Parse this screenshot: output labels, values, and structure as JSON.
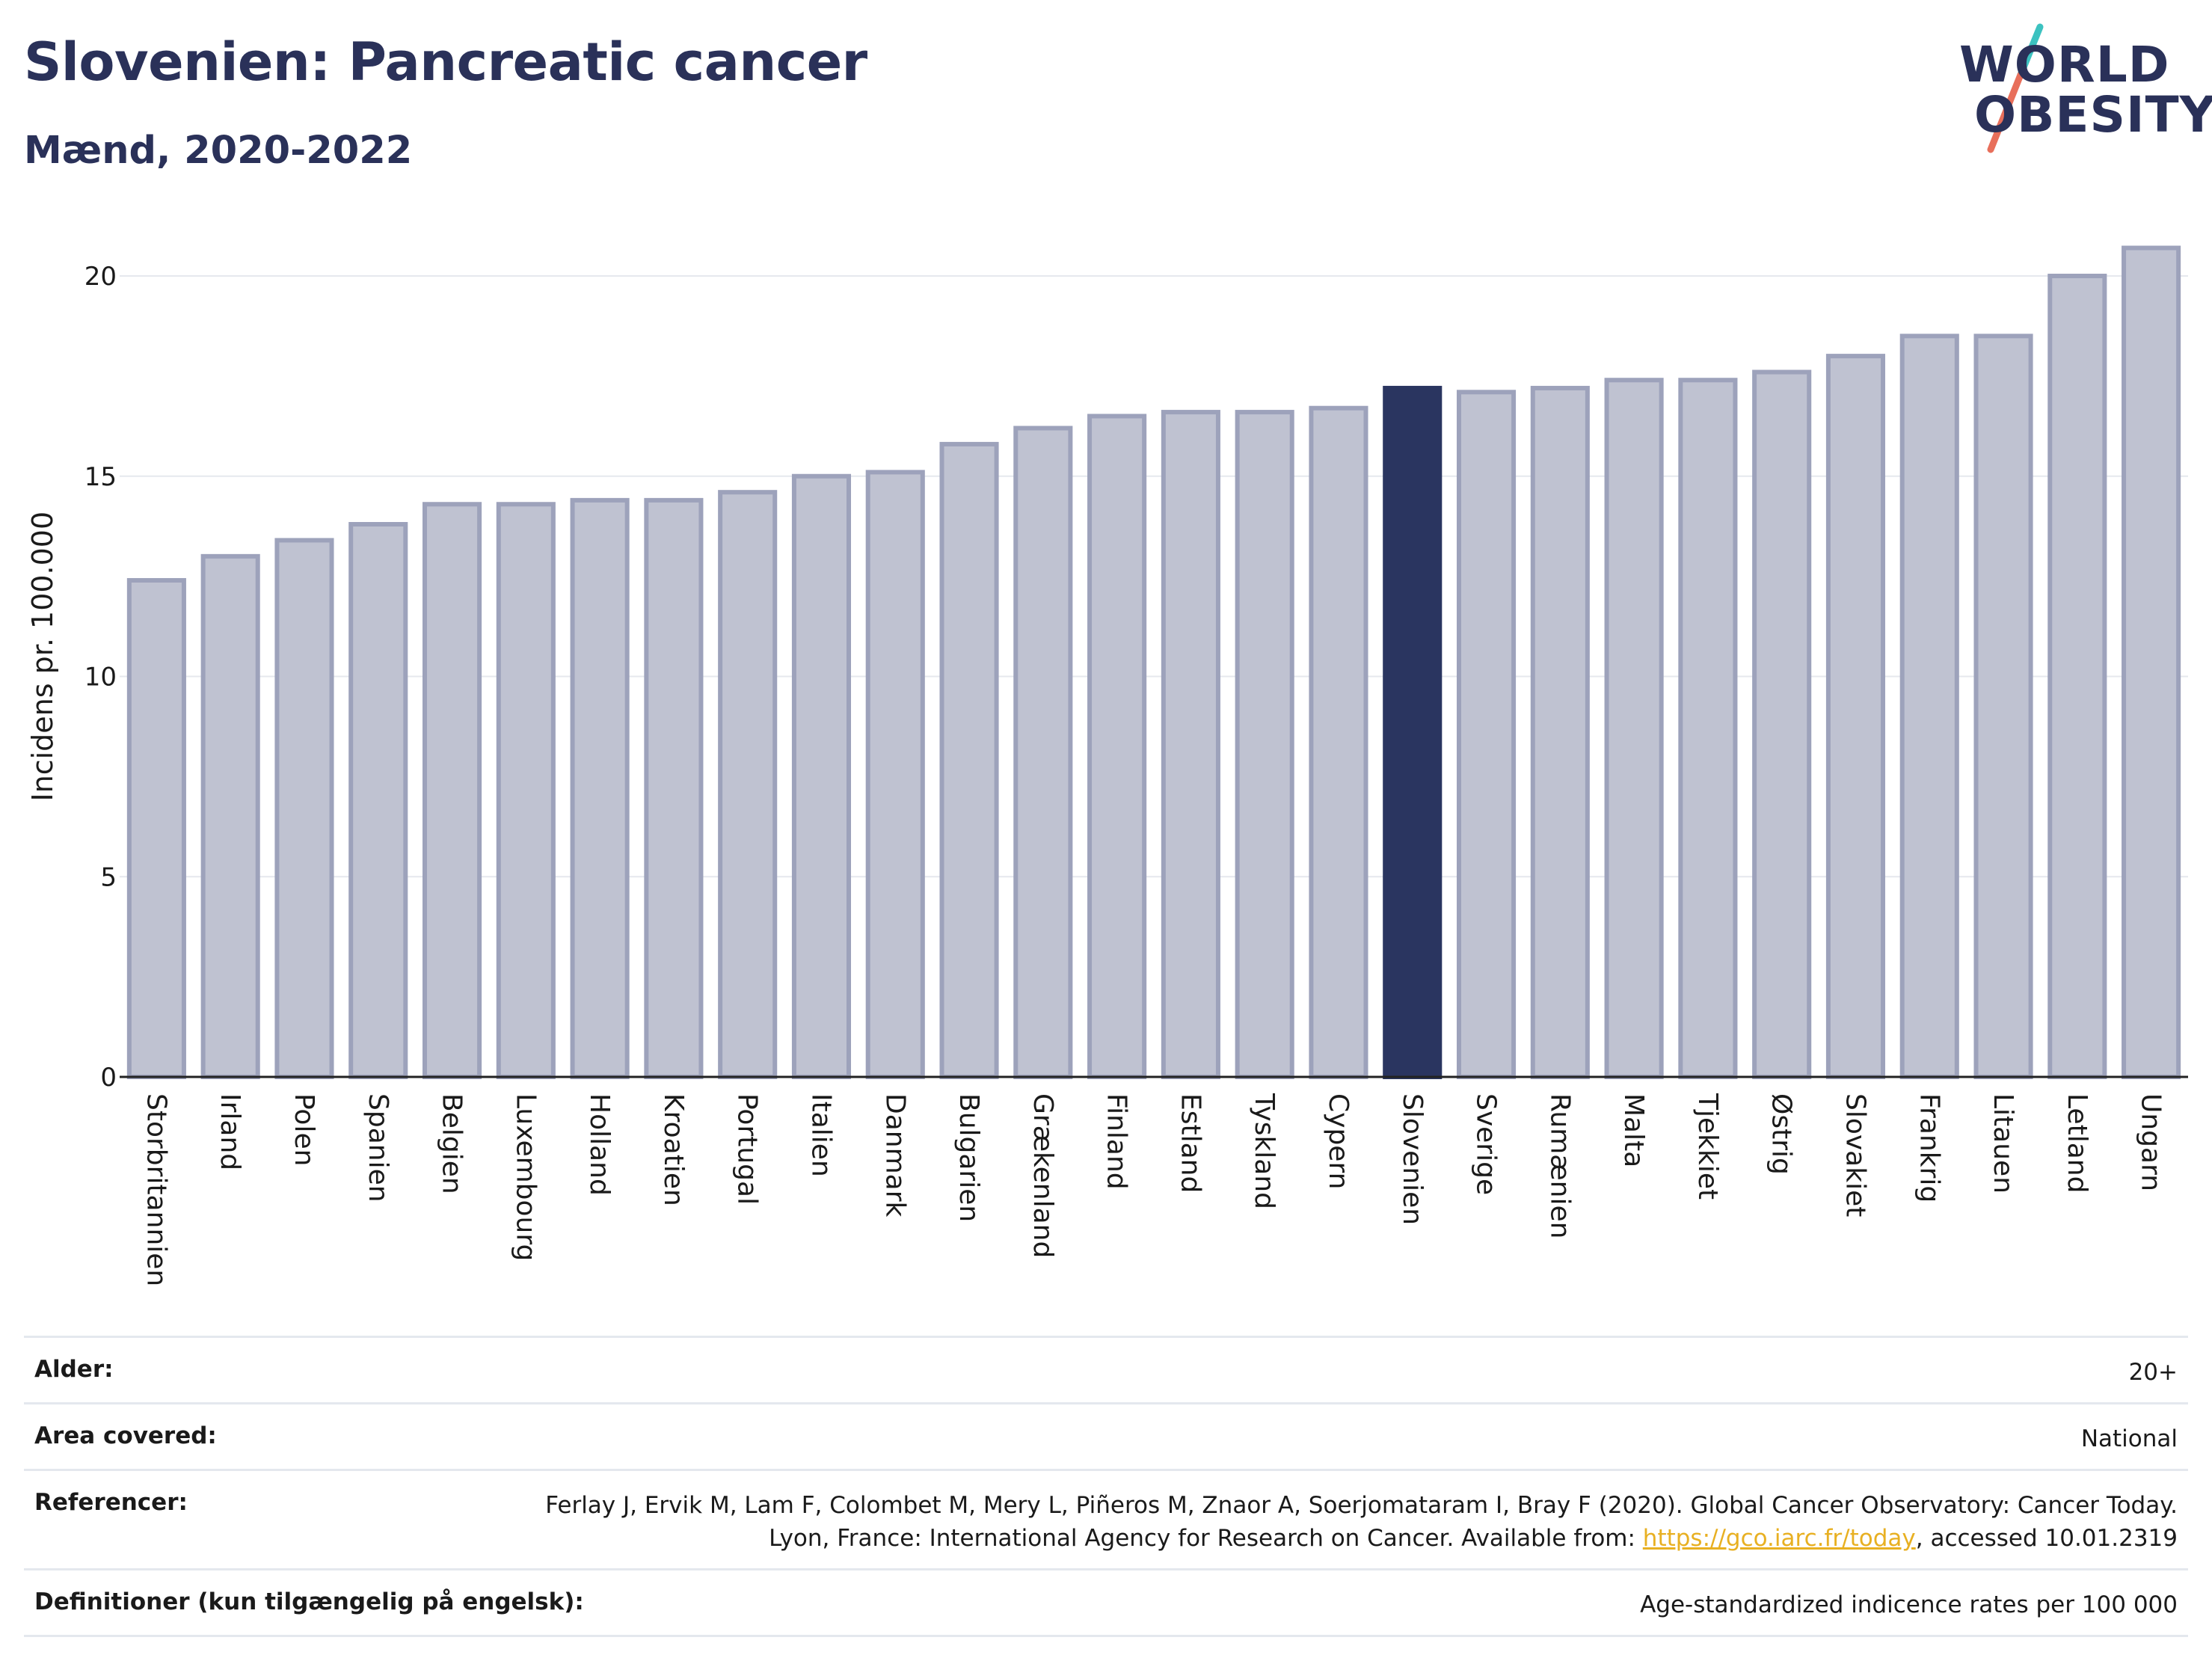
{
  "header": {
    "title": "Slovenien: Pancreatic cancer",
    "subtitle": "Mænd, 2020-2022"
  },
  "logo": {
    "line1": "WORLD",
    "line2": "OBESITY",
    "accent_teal": "#3cc2c0",
    "accent_coral": "#e86f5b"
  },
  "chart_data": {
    "type": "bar",
    "ylabel": "Incidens pr. 100.000",
    "xlabel": "",
    "ylim": [
      0,
      21
    ],
    "yticks": [
      0,
      5,
      10,
      15,
      20
    ],
    "grid": true,
    "highlight": "Slovenien",
    "colors": {
      "bar": "#bfc2d1",
      "bar_edge": "#9da2bb",
      "highlight": "#2a3560",
      "grid": "#e6e8ee"
    },
    "categories": [
      "Storbritannien",
      "Irland",
      "Polen",
      "Spanien",
      "Belgien",
      "Luxembourg",
      "Holland",
      "Kroatien",
      "Portugal",
      "Italien",
      "Danmark",
      "Bulgarien",
      "Grækenland",
      "Finland",
      "Estland",
      "Tyskland",
      "Cypern",
      "Slovenien",
      "Sverige",
      "Rumænien",
      "Malta",
      "Tjekkiet",
      "Østrig",
      "Slovakiet",
      "Frankrig",
      "Litauen",
      "Letland",
      "Ungarn"
    ],
    "values": [
      12.4,
      13.0,
      13.4,
      13.8,
      14.3,
      14.3,
      14.4,
      14.4,
      14.6,
      15.0,
      15.1,
      15.8,
      16.2,
      16.5,
      16.6,
      16.6,
      16.7,
      17.2,
      17.1,
      17.2,
      17.4,
      17.4,
      17.6,
      18.0,
      18.5,
      18.5,
      20.0,
      20.7
    ]
  },
  "meta": {
    "rows": [
      {
        "label": "Alder:",
        "value": "20+"
      },
      {
        "label": "Area covered:",
        "value": "National"
      },
      {
        "label": "Referencer:",
        "value_pre": "Ferlay J, Ervik M, Lam F, Colombet M, Mery L, Piñeros M, Znaor A, Soerjomataram I, Bray F (2020). Global Cancer Observatory: Cancer Today. Lyon, France: International Agency for Research on Cancer. Available from: ",
        "link": "https://gco.iarc.fr/today",
        "value_post": ", accessed 10.01.2319"
      },
      {
        "label": "Definitioner (kun tilgængelig på engelsk):",
        "value": "Age-standardized indicence rates per 100 000"
      }
    ]
  }
}
